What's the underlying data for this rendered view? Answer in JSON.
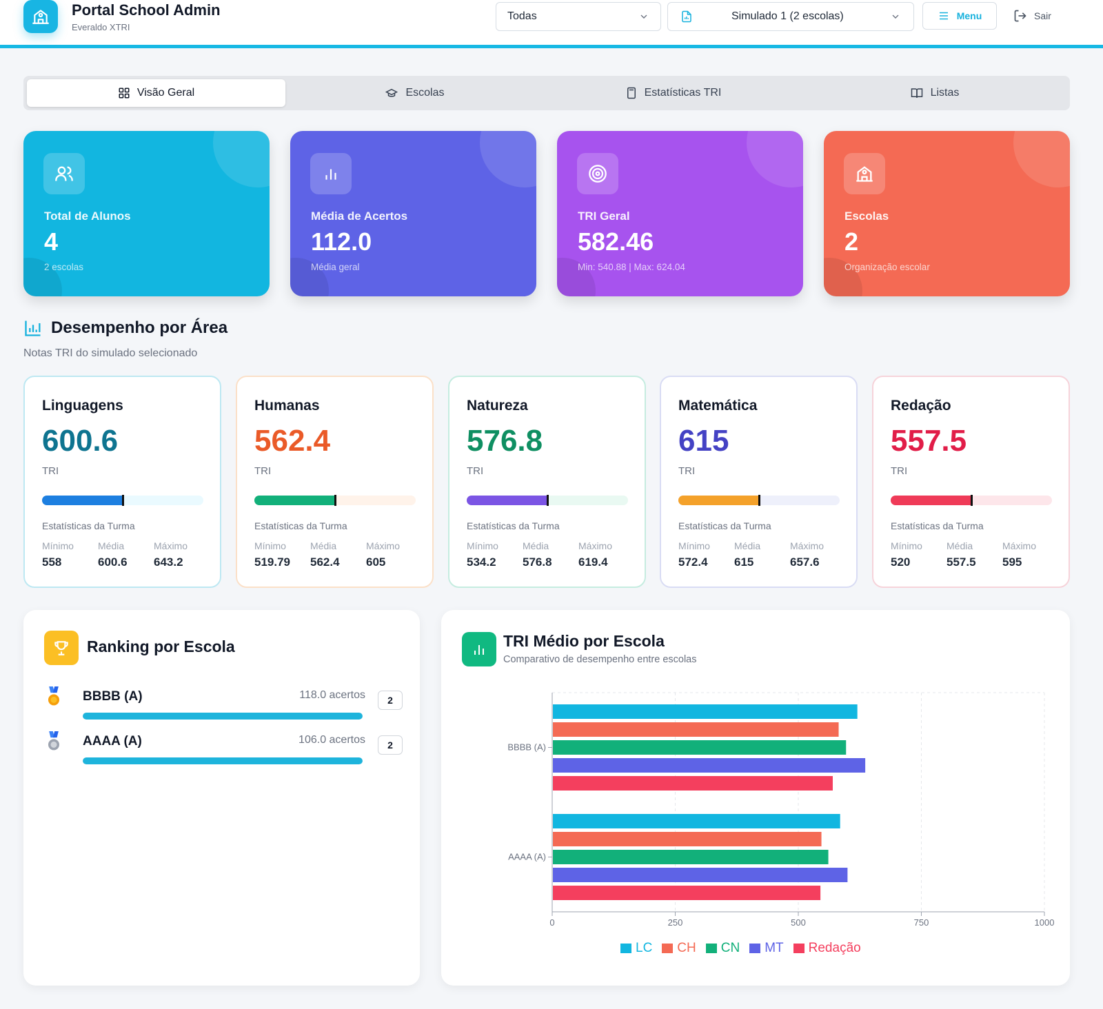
{
  "header": {
    "title": "Portal School Admin",
    "subtitle": "Everaldo XTRI",
    "filter_select": "Todas",
    "simulado_select": "Simulado 1 (2 escolas)",
    "menu_label": "Menu",
    "logout_label": "Sair"
  },
  "tabs": [
    {
      "label": "Visão Geral",
      "active": true,
      "icon": "grid-icon"
    },
    {
      "label": "Escolas",
      "active": false,
      "icon": "graduation-cap-icon"
    },
    {
      "label": "Estatísticas TRI",
      "active": false,
      "icon": "calculator-icon"
    },
    {
      "label": "Listas",
      "active": false,
      "icon": "book-open-icon"
    }
  ],
  "stats": [
    {
      "label": "Total de Alunos",
      "value": "4",
      "sub": "2 escolas",
      "color": "#12b6e0",
      "icon": "users-icon"
    },
    {
      "label": "Média de Acertos",
      "value": "112.0",
      "sub": "Média geral",
      "color": "#5e63e6",
      "icon": "bar-chart-icon"
    },
    {
      "label": "TRI Geral",
      "value": "582.46",
      "sub": "Min: 540.88 | Max: 624.04",
      "color": "#a753ee",
      "icon": "target-icon"
    },
    {
      "label": "Escolas",
      "value": "2",
      "sub": "Organização escolar",
      "color": "#f46a54",
      "icon": "school-icon"
    }
  ],
  "section": {
    "title": "Desempenho por Área",
    "subtitle": "Notas TRI do simulado selecionado"
  },
  "areas": [
    {
      "name": "Linguagens",
      "score": "600.6",
      "unit": "TRI",
      "progress": 0.5,
      "stats_title": "Estatísticas da Turma",
      "min_label": "Mínimo",
      "avg_label": "Média",
      "max_label": "Máximo",
      "min": "558",
      "avg": "600.6",
      "max": "643.2",
      "score_color": "#0e7490",
      "border_color": "#bde8f2",
      "fill_color": "#1d7fe0",
      "track_color": "#eafaff"
    },
    {
      "name": "Humanas",
      "score": "562.4",
      "unit": "TRI",
      "progress": 0.5,
      "stats_title": "Estatísticas da Turma",
      "min_label": "Mínimo",
      "avg_label": "Média",
      "max_label": "Máximo",
      "min": "519.79",
      "avg": "562.4",
      "max": "605",
      "score_color": "#ea5a28",
      "border_color": "#fbe0c8",
      "fill_color": "#12b07a",
      "track_color": "#fff3ea"
    },
    {
      "name": "Natureza",
      "score": "576.8",
      "unit": "TRI",
      "progress": 0.5,
      "stats_title": "Estatísticas da Turma",
      "min_label": "Mínimo",
      "avg_label": "Média",
      "max_label": "Máximo",
      "min": "534.2",
      "avg": "576.8",
      "max": "619.4",
      "score_color": "#0f8f62",
      "border_color": "#c5ece0",
      "fill_color": "#7b55e4",
      "track_color": "#e9f9f2"
    },
    {
      "name": "Matemática",
      "score": "615",
      "unit": "TRI",
      "progress": 0.5,
      "stats_title": "Estatísticas da Turma",
      "min_label": "Mínimo",
      "avg_label": "Média",
      "max_label": "Máximo",
      "min": "572.4",
      "avg": "615",
      "max": "657.6",
      "score_color": "#4442c4",
      "border_color": "#d9dcf4",
      "fill_color": "#f4a12a",
      "track_color": "#eef0fb"
    },
    {
      "name": "Redação",
      "score": "557.5",
      "unit": "TRI",
      "progress": 0.5,
      "stats_title": "Estatísticas da Turma",
      "min_label": "Mínimo",
      "avg_label": "Média",
      "max_label": "Máximo",
      "min": "520",
      "avg": "557.5",
      "max": "595",
      "score_color": "#e11d48",
      "border_color": "#f6d3da",
      "fill_color": "#ef3b58",
      "track_color": "#fde6ea"
    }
  ],
  "ranking": {
    "title": "Ranking por Escola",
    "items": [
      {
        "name": "BBBB (A)",
        "acertos": "118.0 acertos",
        "count": "2",
        "progress": 1.0,
        "medal": "gold-medal-icon"
      },
      {
        "name": "AAAA (A)",
        "acertos": "106.0 acertos",
        "count": "2",
        "progress": 1.0,
        "medal": "silver-medal-icon"
      }
    ]
  },
  "chart_panel": {
    "title": "TRI Médio por Escola",
    "subtitle": "Comparativo de desempenho entre escolas"
  },
  "chart_data": {
    "type": "bar",
    "orientation": "horizontal",
    "categories": [
      "BBBB (A)",
      "AAAA (A)"
    ],
    "series": [
      {
        "name": "LC",
        "color": "#12b6e0",
        "values": [
          620,
          585
        ]
      },
      {
        "name": "CH",
        "color": "#f46a54",
        "values": [
          582,
          547
        ]
      },
      {
        "name": "CN",
        "color": "#12b07a",
        "values": [
          597,
          561
        ]
      },
      {
        "name": "MT",
        "color": "#5e63e6",
        "values": [
          636,
          600
        ]
      },
      {
        "name": "Redação",
        "color": "#f43f5e",
        "values": [
          570,
          545
        ]
      }
    ],
    "xlim": [
      0,
      1000
    ],
    "xticks": [
      "0",
      "250",
      "500",
      "750",
      "1000"
    ],
    "grid": true,
    "legend": "bottom"
  }
}
